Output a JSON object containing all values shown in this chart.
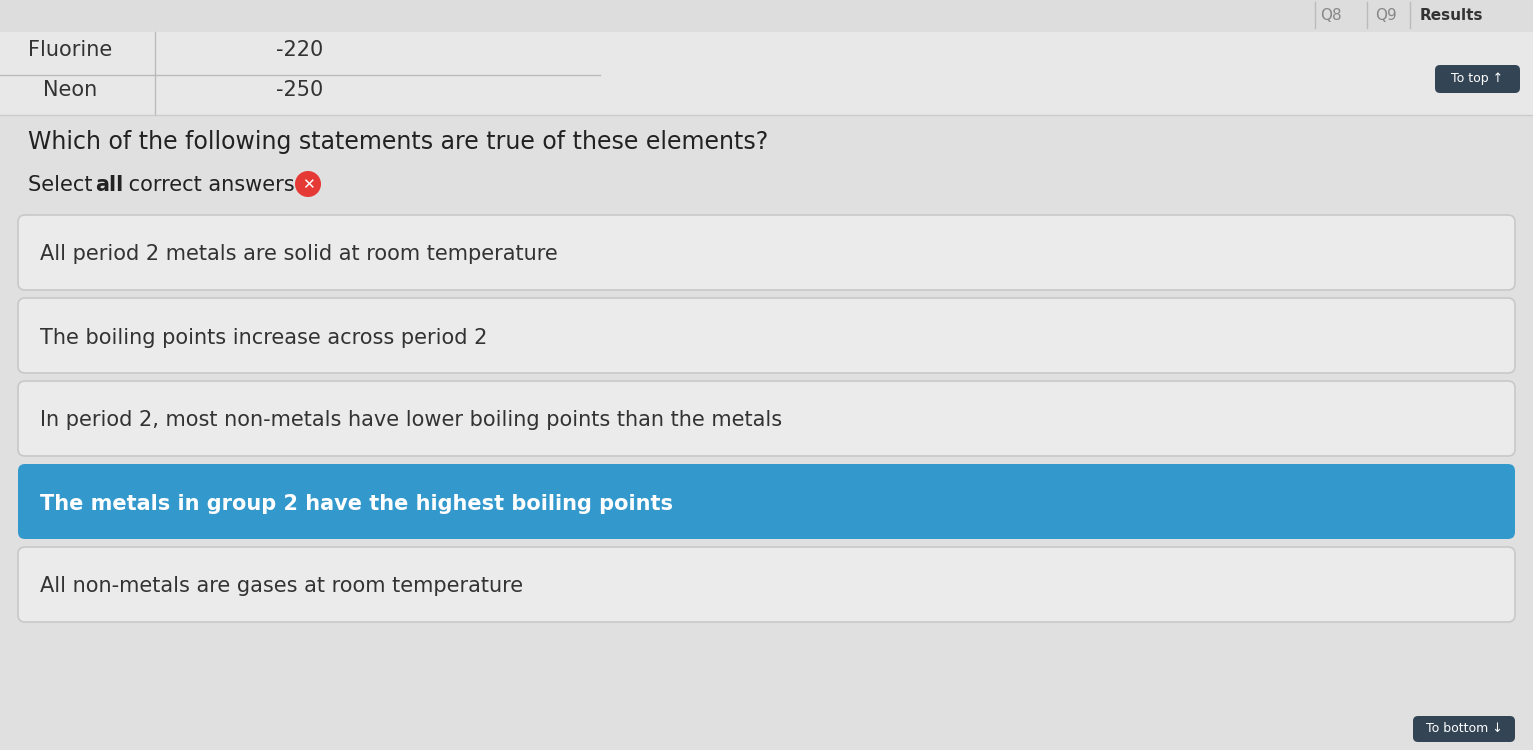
{
  "background_color": "#e0e0e0",
  "header_top_text": "Fluorine",
  "header_top_value": "-220",
  "header_bottom_text": "Neon",
  "header_bottom_value": "-250",
  "nav_buttons": [
    "Q8",
    "Q9",
    "Results"
  ],
  "to_top_label": "To top ↑",
  "question_text": "Which of the following statements are true of these elements?",
  "select_label_plain": "Select ",
  "select_label_bold": "all",
  "select_label_rest": " correct answers",
  "x_button_color": "#e53935",
  "options": [
    {
      "text": "All period 2 metals are solid at room temperature",
      "selected": false
    },
    {
      "text": "The boiling points increase across period 2",
      "selected": false
    },
    {
      "text": "In period 2, most non-metals have lower boiling points than the metals",
      "selected": false
    },
    {
      "text": "The metals in group 2 have the highest boiling points",
      "selected": true
    },
    {
      "text": "All non-metals are gases at room temperature",
      "selected": false
    }
  ],
  "to_bottom_label": "To bottom ↓",
  "option_bg_default": "#ebebeb",
  "option_bg_selected": "#3399cc",
  "option_text_default": "#333333",
  "option_text_selected": "#ffffff",
  "option_border_default": "#c8c8c8",
  "option_border_selected": "#3399cc",
  "to_top_bg": "#334455",
  "to_top_text_color": "#ffffff",
  "to_bottom_bg": "#334455",
  "to_bottom_text_color": "#ffffff",
  "header_bg": "#e8e8e8",
  "nav_bg": "#e8e8e8"
}
